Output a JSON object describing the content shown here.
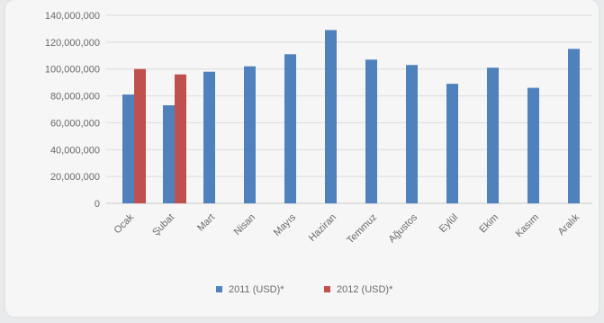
{
  "chart_data": {
    "type": "bar",
    "title": "",
    "xlabel": "",
    "ylabel": "",
    "ylim": [
      0,
      140000000
    ],
    "yticks": [
      "0",
      "20,000,000",
      "40,000,000",
      "60,000,000",
      "80,000,000",
      "100,000,000",
      "120,000,000",
      "140,000,000"
    ],
    "grid": true,
    "legend_position": "bottom",
    "categories": [
      "Ocak",
      "Şubat",
      "Mart",
      "Nisan",
      "Mayıs",
      "Haziran",
      "Temmuz",
      "Ağustos",
      "Eylül",
      "Ekim",
      "Kasım",
      "Aralık"
    ],
    "series": [
      {
        "name": "2011 (USD)*",
        "color": "#4f81bd",
        "values": [
          81000000,
          73000000,
          98000000,
          102000000,
          111000000,
          129000000,
          107000000,
          103000000,
          89000000,
          101000000,
          86000000,
          115000000
        ]
      },
      {
        "name": "2012 (USD)*",
        "color": "#c0504d",
        "values": [
          100000000,
          96000000,
          null,
          null,
          null,
          null,
          null,
          null,
          null,
          null,
          null,
          null
        ]
      }
    ]
  }
}
